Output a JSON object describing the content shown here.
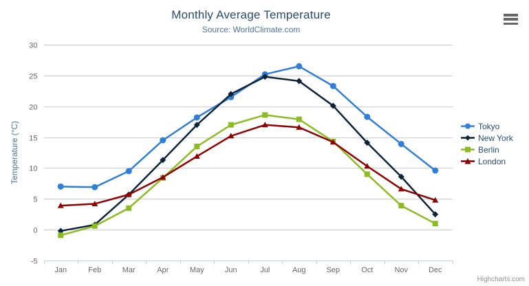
{
  "header": {
    "title": "Monthly Average Temperature",
    "subtitle": "Source: WorldClimate.com"
  },
  "credits": {
    "label": "Highcharts.com"
  },
  "icons": {
    "menu": "hamburger-icon"
  },
  "colors": {
    "title": "#274b6d",
    "subtitle": "#4d759e",
    "axis_label": "#666666",
    "grid_line": "#cccccc",
    "axis_line": "#c0d0e0",
    "menu_icon": "#666666",
    "credits": "#909090"
  },
  "chart_data": {
    "type": "line",
    "title": "Monthly Average Temperature",
    "subtitle": "Source: WorldClimate.com",
    "xlabel": "",
    "ylabel": "Temperature (°C)",
    "categories": [
      "Jan",
      "Feb",
      "Mar",
      "Apr",
      "May",
      "Jun",
      "Jul",
      "Aug",
      "Sep",
      "Oct",
      "Nov",
      "Dec"
    ],
    "series": [
      {
        "name": "Tokyo",
        "color": "#2f7ed8",
        "marker": "circle",
        "values": [
          7.0,
          6.9,
          9.5,
          14.5,
          18.2,
          21.5,
          25.2,
          26.5,
          23.3,
          18.3,
          13.9,
          9.6
        ]
      },
      {
        "name": "New York",
        "color": "#0d233a",
        "marker": "diamond",
        "values": [
          -0.2,
          0.8,
          5.7,
          11.3,
          17.0,
          22.0,
          24.8,
          24.1,
          20.1,
          14.1,
          8.6,
          2.5
        ]
      },
      {
        "name": "Berlin",
        "color": "#8bbc21",
        "marker": "square",
        "values": [
          -0.9,
          0.6,
          3.5,
          8.4,
          13.5,
          17.0,
          18.6,
          17.9,
          14.3,
          9.0,
          3.9,
          1.0
        ]
      },
      {
        "name": "London",
        "color": "#910000",
        "marker": "triangle",
        "values": [
          3.9,
          4.2,
          5.7,
          8.5,
          11.9,
          15.2,
          17.0,
          16.6,
          14.2,
          10.3,
          6.6,
          4.8
        ]
      }
    ],
    "ylim": [
      -5,
      30
    ],
    "ytick_step": 5,
    "grid": true,
    "legend_position": "right"
  }
}
